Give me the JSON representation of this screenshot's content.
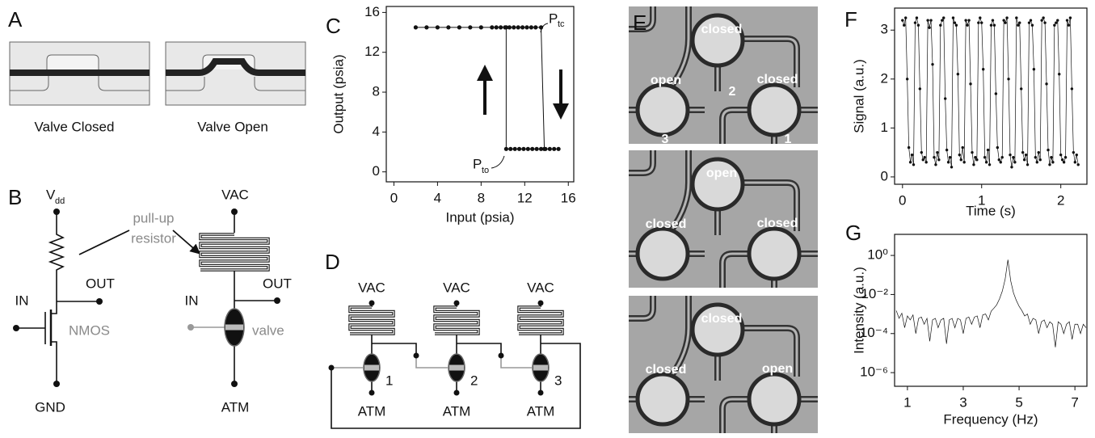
{
  "panel_labels": [
    "A",
    "B",
    "C",
    "D",
    "E",
    "F",
    "G"
  ],
  "panel_a": {
    "captions": [
      "Valve Closed",
      "Valve Open"
    ]
  },
  "panel_b": {
    "vdd": {
      "main": "V",
      "sub": "dd"
    },
    "pullup": [
      "pull-up",
      "resistor"
    ],
    "nmos": {
      "out": "OUT",
      "in": "IN",
      "device": "NMOS",
      "gnd": "GND"
    },
    "valve_circuit": {
      "vac": "VAC",
      "out": "OUT",
      "in": "IN",
      "device": "valve",
      "atm": "ATM"
    }
  },
  "panel_d": {
    "vac": [
      "VAC",
      "VAC",
      "VAC"
    ],
    "atm": [
      "ATM",
      "ATM",
      "ATM"
    ],
    "numbers": [
      "1",
      "2",
      "3"
    ]
  },
  "panel_e": {
    "frames": [
      {
        "top": "closed",
        "left": "open",
        "right": "closed",
        "numbers": [
          "2",
          "3",
          "1"
        ]
      },
      {
        "top": "open",
        "left": "closed",
        "right": "closed"
      },
      {
        "top": "closed",
        "left": "closed",
        "right": "open"
      }
    ]
  },
  "chart_data": [
    {
      "type": "line",
      "markers": true,
      "xlabel": "Input (psia)",
      "ylabel": "Output (psia)",
      "xlim": [
        -0.7,
        16.5
      ],
      "ylim": [
        -1,
        16.6
      ],
      "xticks": [
        0,
        4,
        8,
        12,
        16
      ],
      "yticks": [
        0,
        4,
        8,
        12,
        16
      ],
      "annotations": [
        {
          "main": "P",
          "sub": "tc"
        },
        {
          "main": "P",
          "sub": "to"
        }
      ],
      "series": [
        {
          "color": "#111111",
          "x": [
            2,
            3,
            4,
            5,
            6,
            7,
            8,
            9,
            9.4,
            9.8,
            10.2,
            10.6,
            11,
            11.4,
            11.8,
            12.2,
            12.6,
            13,
            13.5,
            13.8
          ],
          "values": [
            14.5,
            14.5,
            14.5,
            14.5,
            14.5,
            14.5,
            14.5,
            14.5,
            14.5,
            14.5,
            14.5,
            14.5,
            14.5,
            14.5,
            14.5,
            14.5,
            14.5,
            14.5,
            14.5,
            2.3
          ]
        },
        {
          "color": "#111111",
          "x": [
            15.1,
            14.7,
            14.3,
            13.9,
            13.5,
            13.1,
            12.7,
            12.3,
            11.9,
            11.5,
            11.1,
            10.7,
            10.3,
            10.3
          ],
          "values": [
            2.3,
            2.3,
            2.3,
            2.3,
            2.3,
            2.3,
            2.3,
            2.3,
            2.3,
            2.3,
            2.3,
            2.3,
            2.3,
            14.5
          ]
        }
      ]
    },
    {
      "type": "line",
      "markers": true,
      "xlabel": "Time (s)",
      "ylabel": "Signal (a.u.)",
      "xlim": [
        -0.1,
        2.33
      ],
      "ylim": [
        -0.15,
        3.45
      ],
      "xticks": [
        0,
        1,
        2
      ],
      "yticks": [
        0,
        1,
        2,
        3
      ],
      "series": [
        {
          "color": "#111111",
          "x": [
            0,
            0.02,
            0.04,
            0.06,
            0.08,
            0.1,
            0.12,
            0.14,
            0.16,
            0.18,
            0.2,
            0.22,
            0.24,
            0.26,
            0.28,
            0.3,
            0.32,
            0.34,
            0.36,
            0.38,
            0.4,
            0.42,
            0.44,
            0.46,
            0.48,
            0.5,
            0.52,
            0.54,
            0.56,
            0.58,
            0.6,
            0.62,
            0.64,
            0.66,
            0.68,
            0.7,
            0.72,
            0.74,
            0.76,
            0.78,
            0.8,
            0.82,
            0.84,
            0.86,
            0.88,
            0.9,
            0.92,
            0.94,
            0.96,
            0.98,
            1,
            1.02,
            1.04,
            1.06,
            1.08,
            1.1,
            1.12,
            1.14,
            1.16,
            1.18,
            1.2,
            1.22,
            1.24,
            1.26,
            1.28,
            1.3,
            1.32,
            1.34,
            1.36,
            1.38,
            1.4,
            1.42,
            1.44,
            1.46,
            1.48,
            1.5,
            1.52,
            1.54,
            1.56,
            1.58,
            1.6,
            1.62,
            1.64,
            1.66,
            1.68,
            1.7,
            1.72,
            1.74,
            1.76,
            1.78,
            1.8,
            1.82,
            1.84,
            1.86,
            1.88,
            1.9,
            1.92,
            1.94,
            1.96,
            1.98,
            2,
            2.02,
            2.04,
            2.06,
            2.08,
            2.1,
            2.12,
            2.14,
            2.16,
            2.18,
            2.2,
            2.22
          ],
          "values": [
            3.2,
            3.1,
            3.25,
            2.0,
            0.6,
            0.3,
            0.45,
            0.25,
            3.15,
            3.25,
            3.1,
            1.8,
            0.5,
            0.35,
            0.4,
            0.3,
            3.2,
            3.05,
            3.2,
            2.3,
            0.4,
            0.25,
            0.5,
            0.35,
            3.1,
            3.2,
            3.25,
            1.6,
            0.55,
            0.3,
            0.4,
            0.2,
            3.25,
            3.15,
            3.1,
            2.1,
            0.45,
            0.35,
            0.6,
            0.3,
            3.2,
            3.1,
            3.2,
            1.9,
            0.5,
            0.25,
            0.4,
            0.35,
            3.15,
            3.25,
            3.15,
            2.2,
            0.4,
            0.3,
            0.55,
            0.25,
            3.1,
            3.2,
            3.1,
            1.7,
            0.6,
            0.35,
            0.3,
            0.4,
            3.2,
            3.15,
            3.25,
            2.0,
            0.45,
            0.2,
            0.4,
            0.3,
            3.25,
            3.1,
            3.15,
            1.8,
            0.5,
            0.35,
            0.45,
            0.25,
            3.15,
            3.2,
            3.1,
            2.2,
            0.4,
            0.3,
            0.5,
            0.35,
            3.2,
            3.25,
            3.15,
            1.9,
            0.55,
            0.25,
            0.4,
            0.3,
            3.1,
            3.15,
            3.2,
            2.1,
            0.45,
            0.35,
            0.3,
            0.4,
            3.2,
            3.1,
            3.25,
            1.8,
            0.5,
            0.3,
            0.45,
            0.25
          ]
        }
      ]
    },
    {
      "type": "line",
      "markers": false,
      "log_y": true,
      "xlabel": "Frequency (Hz)",
      "ylabel": "Intensity (a.u.)",
      "xlim": [
        0.54,
        7.43
      ],
      "ylim": [
        2e-07,
        12
      ],
      "xticks": [
        1,
        3,
        5,
        7
      ],
      "yticks": [
        {
          "value": 1,
          "label": "10⁰"
        },
        {
          "value": 0.01,
          "label": "10⁻²"
        },
        {
          "value": 0.0001,
          "label": "10⁻⁴"
        },
        {
          "value": 1e-06,
          "label": "10⁻⁶"
        }
      ],
      "series": [
        {
          "color": "#111111",
          "x": [
            0.6,
            0.7,
            0.8,
            0.9,
            1,
            1.1,
            1.2,
            1.3,
            1.4,
            1.5,
            1.6,
            1.7,
            1.8,
            1.9,
            2,
            2.1,
            2.2,
            2.3,
            2.4,
            2.5,
            2.6,
            2.7,
            2.8,
            2.9,
            3,
            3.1,
            3.2,
            3.3,
            3.4,
            3.5,
            3.6,
            3.7,
            3.8,
            3.9,
            4,
            4.1,
            4.2,
            4.3,
            4.4,
            4.5,
            4.6,
            4.7,
            4.8,
            4.9,
            5,
            5.1,
            5.2,
            5.3,
            5.4,
            5.5,
            5.6,
            5.7,
            5.8,
            5.9,
            6,
            6.1,
            6.2,
            6.3,
            6.4,
            6.5,
            6.6,
            6.7,
            6.8,
            6.9,
            7,
            7.1,
            7.2,
            7.3,
            7.4
          ],
          "values": [
            0.0015,
            0.0006,
            0.0011,
            0.0002,
            0.0008,
            0.0005,
            0.0009,
            0.0001,
            0.0006,
            0.0007,
            0.0003,
            0.0006,
            4e-05,
            0.0005,
            0.0006,
            0.0002,
            0.0005,
            0.0006,
            3e-05,
            0.0005,
            0.0006,
            0.0002,
            0.0006,
            0.0005,
            0.0001,
            0.0006,
            0.0007,
            0.0003,
            0.0007,
            0.0008,
            0.0002,
            0.0009,
            0.001,
            0.0005,
            0.0014,
            0.002,
            0.003,
            0.006,
            0.015,
            0.06,
            0.6,
            0.05,
            0.012,
            0.005,
            0.0025,
            0.0015,
            0.0008,
            0.001,
            0.0003,
            0.0006,
            0.0005,
            0.0001,
            0.0004,
            0.0005,
            0.0002,
            0.0004,
            0.0003,
            2e-05,
            0.0004,
            0.0003,
            0.0001,
            0.0003,
            0.0004,
            5e-05,
            0.0003,
            0.0003,
            0.0001,
            0.0003,
            0.0002
          ]
        }
      ]
    }
  ]
}
